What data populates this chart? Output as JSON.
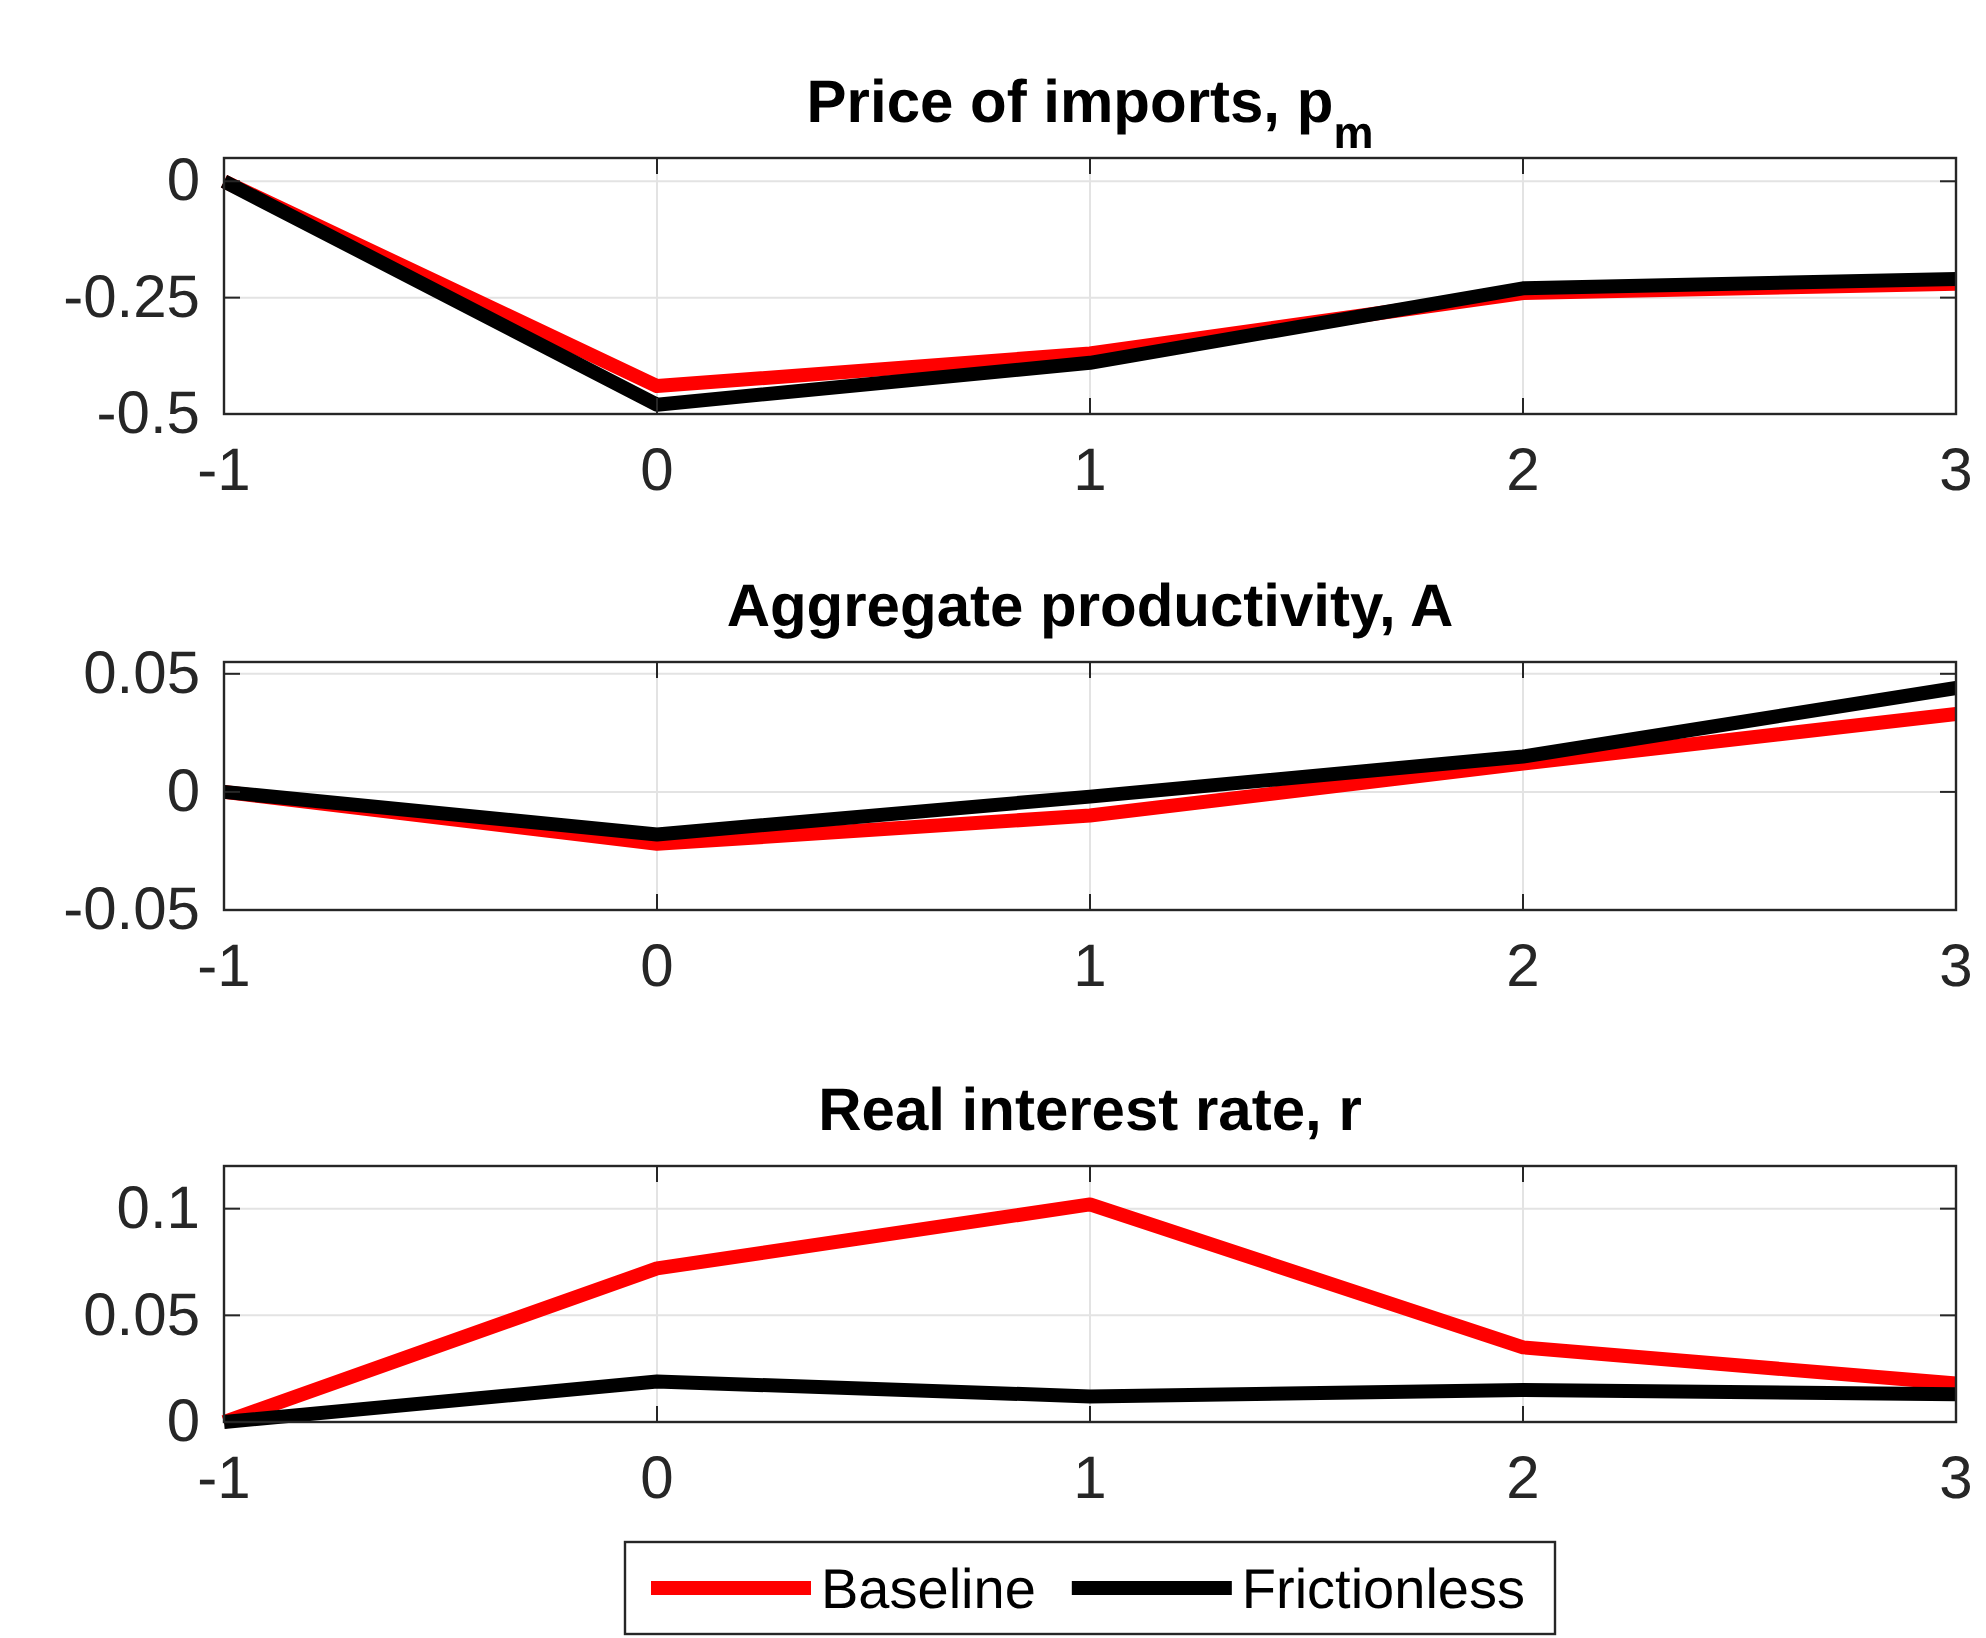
{
  "chart_data": [
    {
      "type": "line",
      "title": "Price of imports, p$_{m}$",
      "x": [
        -1,
        0,
        1,
        2,
        3
      ],
      "xlim": [
        -1,
        3
      ],
      "xticks": [
        -1,
        0,
        1,
        2,
        3
      ],
      "ylim": [
        -0.5,
        0.05
      ],
      "yticks": [
        -0.5,
        -0.25,
        0
      ],
      "grid": true,
      "series": [
        {
          "color": "#ff0000",
          "values": [
            0,
            -0.44,
            -0.37,
            -0.24,
            -0.22
          ]
        },
        {
          "color": "#000000",
          "values": [
            0,
            -0.48,
            -0.39,
            -0.23,
            -0.21
          ]
        }
      ]
    },
    {
      "type": "line",
      "title": "Aggregate productivity, A",
      "x": [
        -1,
        0,
        1,
        2,
        3
      ],
      "xlim": [
        -1,
        3
      ],
      "xticks": [
        -1,
        0,
        1,
        2,
        3
      ],
      "ylim": [
        -0.05,
        0.055
      ],
      "yticks": [
        -0.05,
        0,
        0.05
      ],
      "grid": true,
      "series": [
        {
          "color": "#ff0000",
          "values": [
            0,
            -0.022,
            -0.01,
            0.012,
            0.033
          ]
        },
        {
          "color": "#000000",
          "values": [
            0,
            -0.018,
            -0.002,
            0.015,
            0.044
          ]
        }
      ]
    },
    {
      "type": "line",
      "title": "Real interest rate, r",
      "x": [
        -1,
        0,
        1,
        2,
        3
      ],
      "xlim": [
        -1,
        3
      ],
      "xticks": [
        -1,
        0,
        1,
        2,
        3
      ],
      "ylim": [
        0,
        0.12
      ],
      "yticks": [
        0,
        0.05,
        0.1
      ],
      "grid": true,
      "legend": "bottom",
      "series": [
        {
          "name": "Baseline",
          "color": "#ff0000",
          "values": [
            0,
            0.072,
            0.102,
            0.035,
            0.018
          ]
        },
        {
          "name": "Frictionless",
          "color": "#000000",
          "values": [
            0,
            0.019,
            0.012,
            0.015,
            0.013
          ]
        }
      ]
    }
  ]
}
